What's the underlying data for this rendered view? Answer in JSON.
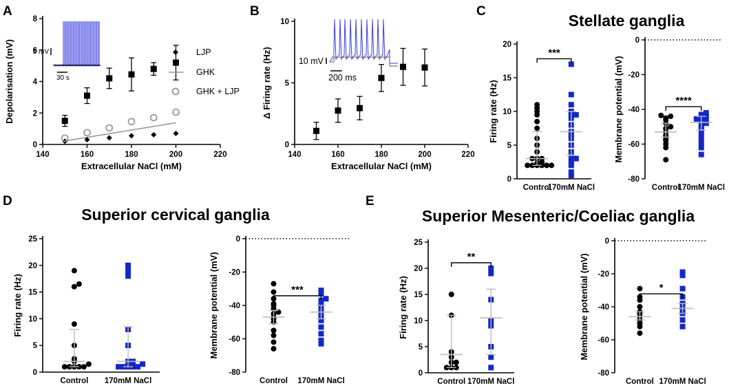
{
  "colors": {
    "control": "#000000",
    "nacl": "#1428c8",
    "ghk": "#999999",
    "trace": "#3a3ae0"
  },
  "panels": {
    "A": "A",
    "B": "B",
    "C": "C",
    "D": "D",
    "E": "E"
  },
  "titles": {
    "C": "Stellate ganglia",
    "D": "Superior cervical ganglia",
    "E": "Superior Mesenteric/Coeliac ganglia"
  },
  "chart_data": [
    {
      "id": "A",
      "type": "scatter",
      "xlabel": "Extracellular NaCl (mM)",
      "ylabel": "Depolarisation (mV)",
      "xlim": [
        140,
        220
      ],
      "ylim": [
        0,
        8
      ],
      "xticks": [
        140,
        160,
        180,
        200,
        220
      ],
      "yticks": [
        0,
        2,
        4,
        6,
        8
      ],
      "xtick_labels": [
        "140",
        "160",
        "180",
        "200",
        "220"
      ],
      "ytick_labels": [
        "0",
        "2",
        "4",
        "6",
        "8"
      ],
      "measured": {
        "x": [
          150,
          160,
          170,
          180,
          190,
          200
        ],
        "y": [
          1.5,
          3.1,
          4.2,
          4.45,
          4.8,
          5.2
        ],
        "err": [
          0.35,
          0.5,
          0.65,
          1.05,
          0.4,
          1.1
        ]
      },
      "series": [
        {
          "name": "LJP",
          "marker": "diamond",
          "x": [
            150,
            160,
            170,
            180,
            190,
            200
          ],
          "y": [
            0.2,
            0.3,
            0.42,
            0.55,
            0.62,
            0.7
          ]
        },
        {
          "name": "GHK",
          "marker": "line",
          "x": [
            150,
            200
          ],
          "y": [
            0.22,
            1.38
          ]
        },
        {
          "name": "GHK + LJP",
          "marker": "open-circle",
          "x": [
            150,
            160,
            170,
            180,
            190,
            200
          ],
          "y": [
            0.4,
            0.75,
            1.05,
            1.45,
            1.7,
            2.05
          ]
        }
      ],
      "inset_scale": {
        "v": "5 mV",
        "t": "30 s"
      }
    },
    {
      "id": "B",
      "type": "scatter",
      "xlabel": "Extracellular NaCl (mM)",
      "ylabel": "Δ Firing rate (Hz)",
      "xlim": [
        140,
        220
      ],
      "ylim": [
        0,
        10
      ],
      "xticks": [
        140,
        160,
        180,
        200,
        220
      ],
      "yticks": [
        0,
        5,
        10
      ],
      "xtick_labels": [
        "140",
        "160",
        "180",
        "200",
        "220"
      ],
      "ytick_labels": [
        "0",
        "5",
        "10"
      ],
      "measured": {
        "x": [
          150,
          160,
          170,
          180,
          190,
          200
        ],
        "y": [
          1.1,
          2.75,
          2.95,
          5.4,
          6.3,
          6.25
        ],
        "err": [
          0.7,
          0.95,
          0.95,
          1.1,
          1.5,
          1.5
        ]
      },
      "inset_scale": {
        "v": "10 mV",
        "t": "200 ms"
      }
    },
    {
      "id": "C1",
      "type": "dot",
      "ylabel": "Firing rate (Hz)",
      "ylim": [
        0,
        20
      ],
      "yticks": [
        0,
        5,
        10,
        15,
        20
      ],
      "ytick_labels": [
        "0",
        "5",
        "10",
        "15",
        "20"
      ],
      "categories": [
        "Control",
        "170mM NaCl"
      ],
      "groups": [
        {
          "name": "Control",
          "values": [
            2,
            2,
            2,
            2,
            2,
            2,
            2.3,
            2.5,
            3,
            3,
            3,
            4,
            5,
            6,
            7.5,
            8.5,
            9.5,
            10,
            10.5,
            11
          ],
          "median": 3,
          "lower": 2,
          "upper": 7
        },
        {
          "name": "170mM NaCl",
          "values": [
            0.5,
            1,
            2,
            2.5,
            3,
            3,
            4,
            5,
            6,
            6.5,
            7,
            8,
            9,
            9.5,
            9.5,
            10,
            11,
            12.5,
            17
          ],
          "median": 7,
          "lower": 3.5,
          "upper": 10
        }
      ],
      "significance": "***"
    },
    {
      "id": "C2",
      "type": "dot",
      "ylabel": "Membrane potential  (mV)",
      "ylim": [
        -80,
        0
      ],
      "yticks": [
        0,
        -20,
        -40,
        -60,
        -80
      ],
      "ytick_labels": [
        "0",
        "-20",
        "-40",
        "-60",
        "-80"
      ],
      "categories": [
        "Control",
        "170mM NaCl"
      ],
      "groups": [
        {
          "name": "Control",
          "values": [
            -69,
            -62,
            -60,
            -58,
            -57,
            -55,
            -53,
            -51,
            -50,
            -48,
            -46,
            -45,
            -44,
            -43.5
          ],
          "median": -53,
          "lower": -56,
          "upper": -48
        },
        {
          "name": "170mM NaCl",
          "values": [
            -66,
            -62,
            -59,
            -56,
            -53,
            -51,
            -49,
            -48,
            -47,
            -46,
            -45.5,
            -44.5,
            -44,
            -43,
            -42
          ],
          "median": -47.5,
          "lower": -52,
          "upper": -44
        }
      ],
      "significance": "****"
    },
    {
      "id": "D1",
      "type": "dot",
      "ylabel": "Firing rate (Hz)",
      "ylim": [
        0,
        25
      ],
      "yticks": [
        0,
        5,
        10,
        15,
        20,
        25
      ],
      "ytick_labels": [
        "0",
        "5",
        "10",
        "15",
        "20",
        "25"
      ],
      "categories": [
        "Control",
        "170mM NaCl"
      ],
      "groups": [
        {
          "name": "Control",
          "values": [
            1,
            1,
            1,
            1,
            1,
            1.5,
            2,
            2.5,
            5,
            9,
            16,
            16.5,
            19
          ],
          "median": 2,
          "lower": 1,
          "upper": 8
        },
        {
          "name": "170mM NaCl",
          "values": [
            1,
            1,
            1,
            1,
            1,
            1.5,
            2,
            2,
            5,
            8,
            18,
            19,
            20
          ],
          "median": 2,
          "lower": 1,
          "upper": 8.5
        }
      ]
    },
    {
      "id": "D2",
      "type": "dot",
      "ylabel": "Membrane potential  (mV)",
      "ylim": [
        -80,
        0
      ],
      "yticks": [
        0,
        -20,
        -40,
        -60,
        -80
      ],
      "ytick_labels": [
        "0",
        "-20",
        "-40",
        "-60",
        "-80"
      ],
      "categories": [
        "Control",
        "170mM NaCl"
      ],
      "groups": [
        {
          "name": "Control",
          "values": [
            -66,
            -62,
            -58,
            -55,
            -50,
            -48,
            -47,
            -45,
            -44,
            -42,
            -40,
            -39,
            -36,
            -32,
            -27
          ],
          "median": -47,
          "lower": -51,
          "upper": -43
        },
        {
          "name": "170mM NaCl",
          "values": [
            -63,
            -61,
            -57,
            -53,
            -49,
            -46,
            -44,
            -42,
            -40,
            -37,
            -36,
            -33,
            -31
          ],
          "median": -44,
          "lower": -48,
          "upper": -40
        }
      ],
      "significance": "***"
    },
    {
      "id": "E1",
      "type": "dot",
      "ylabel": "Firing rate (Hz)",
      "ylim": [
        0,
        25
      ],
      "yticks": [
        0,
        5,
        10,
        15,
        20,
        25
      ],
      "ytick_labels": [
        "0",
        "5",
        "10",
        "15",
        "20",
        "25"
      ],
      "categories": [
        "Control",
        "170mM NaCl"
      ],
      "groups": [
        {
          "name": "Control",
          "values": [
            1,
            1,
            1,
            2,
            2,
            3,
            4,
            11,
            15
          ],
          "median": 3.5,
          "lower": 1,
          "upper": 11
        },
        {
          "name": "170mM NaCl",
          "values": [
            1,
            3,
            5,
            9,
            10,
            14,
            19,
            20
          ],
          "median": 10.5,
          "lower": 3.5,
          "upper": 16
        }
      ],
      "significance": "**"
    },
    {
      "id": "E2",
      "type": "dot",
      "ylabel": "Membrane potential  (mV)",
      "ylim": [
        -80,
        0
      ],
      "yticks": [
        0,
        -20,
        -40,
        -60,
        -80
      ],
      "ytick_labels": [
        "0",
        "-20",
        "-40",
        "-60",
        "-80"
      ],
      "categories": [
        "Control",
        "170mM NaCl"
      ],
      "groups": [
        {
          "name": "Control",
          "values": [
            -56,
            -52,
            -50,
            -48,
            -46,
            -44,
            -43,
            -40,
            -36,
            -34,
            -29
          ],
          "median": -46,
          "lower": -48,
          "upper": -43
        },
        {
          "name": "170mM NaCl",
          "values": [
            -52,
            -48,
            -44,
            -42,
            -40,
            -38,
            -34,
            -29,
            -21,
            -19
          ],
          "median": -41,
          "lower": -44,
          "upper": -38
        }
      ],
      "significance": "*"
    }
  ]
}
